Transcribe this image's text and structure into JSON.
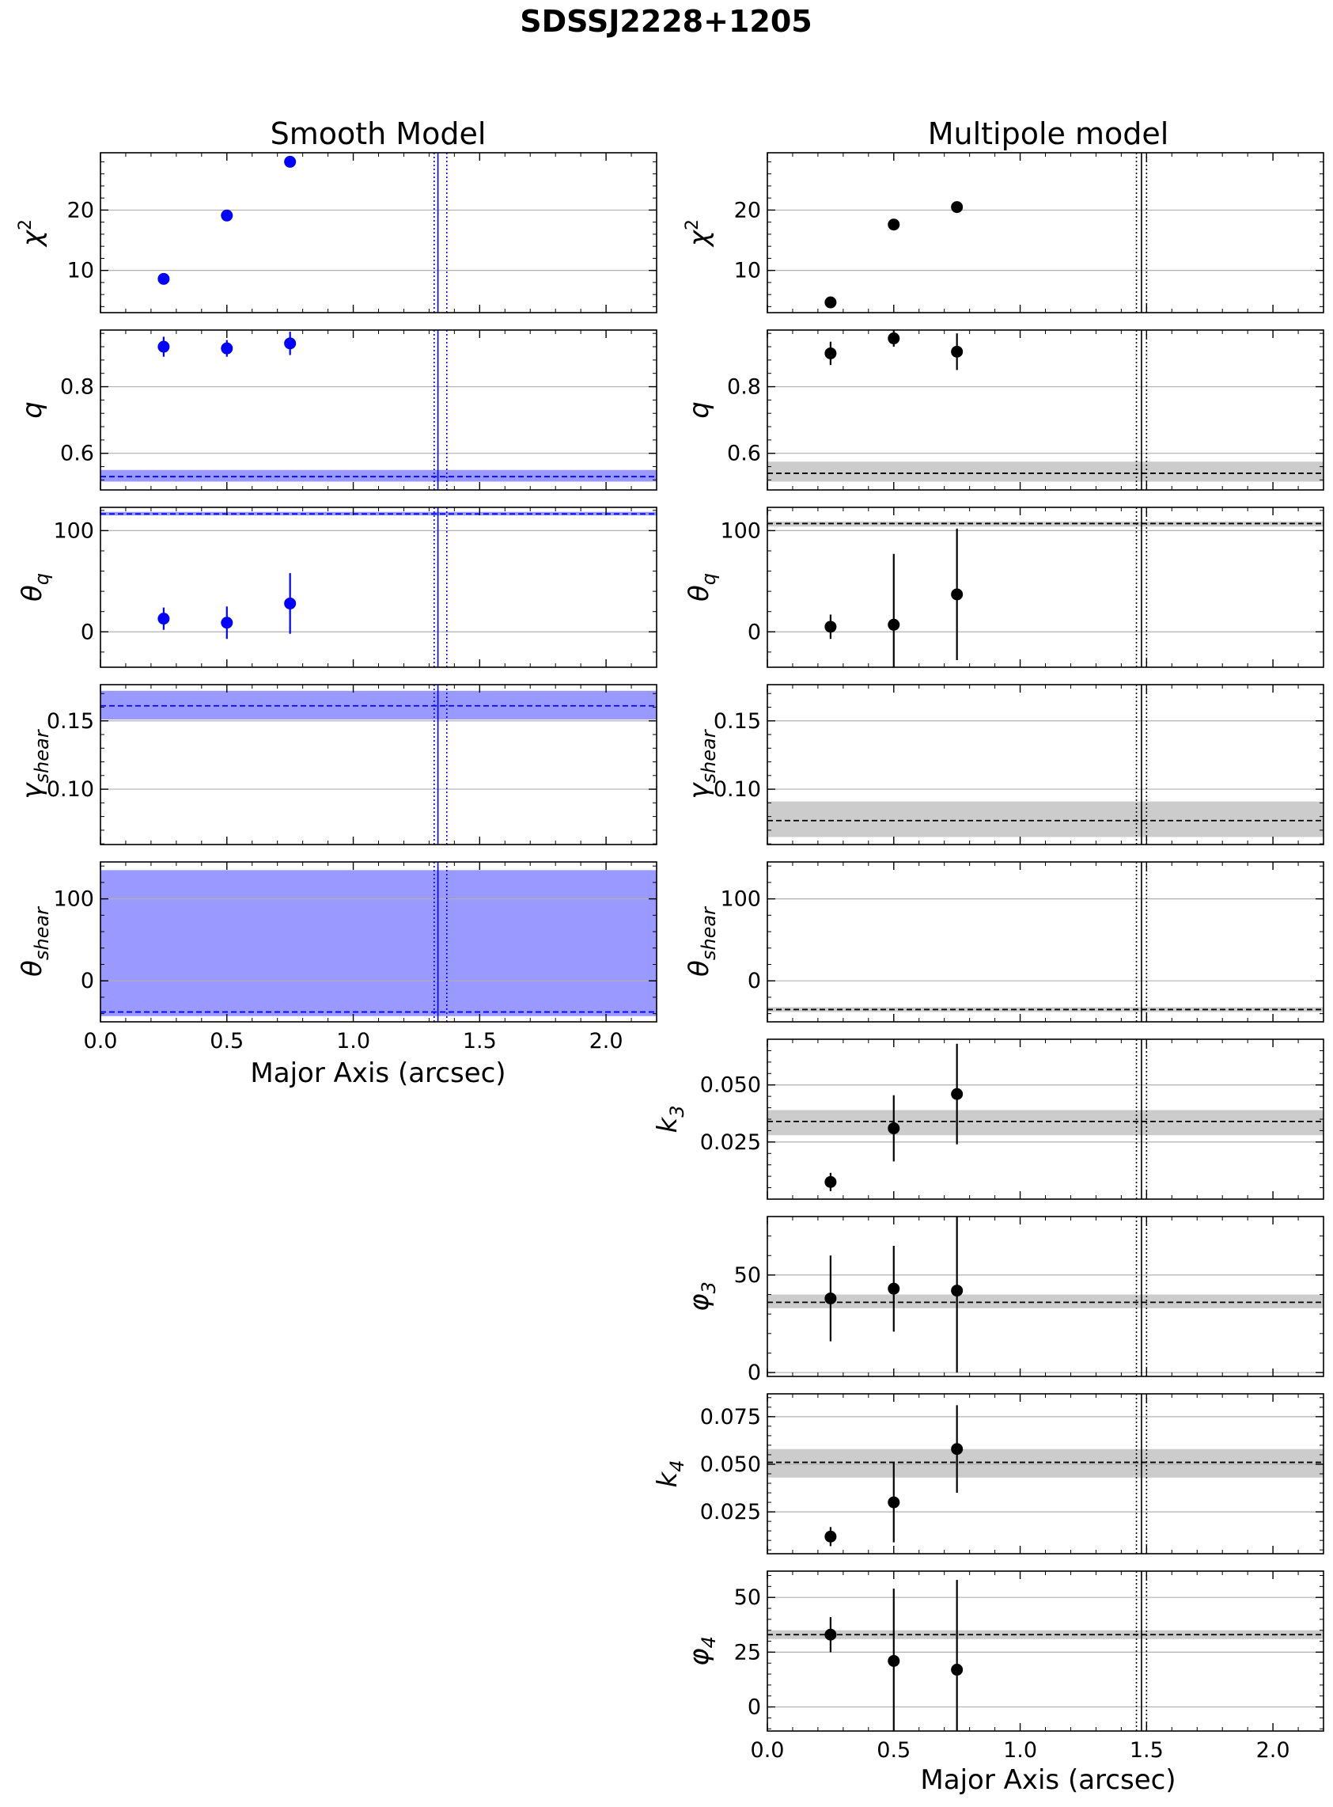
{
  "title": "SDSSJ2228+1205",
  "colors": {
    "smooth": "#0000ff",
    "smooth_band": "#9999ff",
    "multipole": "#000000",
    "multipole_band": "#cccccc",
    "grid": "#b0b0b0"
  },
  "chart_data": [
    {
      "type": "scatter",
      "column_title": "Smooth Model",
      "xlabel": "Major Axis (arcsec)",
      "xlim": [
        0.0,
        2.2
      ],
      "xticks": [
        "0.0",
        "0.5",
        "1.0",
        "1.5",
        "2.0"
      ],
      "marker_color": "#0000ff",
      "band_color": "#9999ff",
      "vlines": {
        "solid": 1.335,
        "dotted": [
          1.32,
          1.37
        ]
      },
      "panels": [
        {
          "ylabel_main": "χ",
          "ylabel_sup": "2",
          "ylabel_sub": "",
          "ylim": [
            3,
            29.5
          ],
          "yticks": [
            10,
            20
          ],
          "ytick_labels": [
            "10",
            "20"
          ],
          "x": [
            0.25,
            0.5,
            0.75
          ],
          "y": [
            8.6,
            19.1,
            28.0
          ],
          "err": [
            0,
            0,
            0
          ]
        },
        {
          "ylabel_main": "q",
          "ylabel_sup": "",
          "ylabel_sub": "",
          "ylim": [
            0.49,
            0.97
          ],
          "yticks": [
            0.6,
            0.8
          ],
          "ytick_labels": [
            "0.6",
            "0.8"
          ],
          "x": [
            0.25,
            0.5,
            0.75
          ],
          "y": [
            0.92,
            0.915,
            0.93
          ],
          "err": [
            0.03,
            0.025,
            0.035
          ],
          "hline": 0.53,
          "band": [
            0.515,
            0.55
          ]
        },
        {
          "ylabel_main": "θ",
          "ylabel_sup": "",
          "ylabel_sub": "q",
          "ylim": [
            -35,
            123
          ],
          "yticks": [
            0,
            100
          ],
          "ytick_labels": [
            "0",
            "100"
          ],
          "x": [
            0.25,
            0.5,
            0.75
          ],
          "y": [
            13,
            9,
            28
          ],
          "err": [
            11,
            16,
            30
          ],
          "hline": 116.5,
          "band": [
            115,
            118.5
          ]
        },
        {
          "ylabel_main": "γ",
          "ylabel_sup": "",
          "ylabel_sub": "shear",
          "ylim": [
            0.0595,
            0.1765
          ],
          "yticks": [
            0.1,
            0.15
          ],
          "ytick_labels": [
            "0.10",
            "0.15"
          ],
          "x": [],
          "y": [],
          "err": [],
          "hline": 0.161,
          "band": [
            0.151,
            0.172
          ]
        },
        {
          "ylabel_main": "θ",
          "ylabel_sup": "",
          "ylabel_sub": "shear",
          "ylim": [
            -50,
            145
          ],
          "yticks": [
            0,
            100
          ],
          "ytick_labels": [
            "0",
            "100"
          ],
          "x": [],
          "y": [],
          "err": [],
          "hline": -38,
          "band": [
            -43,
            135
          ]
        }
      ]
    },
    {
      "type": "scatter",
      "column_title": "Multipole model",
      "xlabel": "Major Axis (arcsec)",
      "xlim": [
        0.0,
        2.2
      ],
      "xticks": [
        "0.0",
        "0.5",
        "1.0",
        "1.5",
        "2.0"
      ],
      "marker_color": "#000000",
      "band_color": "#cccccc",
      "vlines": {
        "solid": 1.48,
        "dotted": [
          1.46,
          1.5
        ]
      },
      "panels": [
        {
          "ylabel_main": "χ",
          "ylabel_sup": "2",
          "ylabel_sub": "",
          "ylim": [
            3,
            29.5
          ],
          "yticks": [
            10,
            20
          ],
          "ytick_labels": [
            "10",
            "20"
          ],
          "x": [
            0.25,
            0.5,
            0.75
          ],
          "y": [
            4.7,
            17.6,
            20.5
          ],
          "err": [
            0,
            0,
            0
          ]
        },
        {
          "ylabel_main": "q",
          "ylabel_sup": "",
          "ylabel_sub": "",
          "ylim": [
            0.49,
            0.97
          ],
          "yticks": [
            0.6,
            0.8
          ],
          "ytick_labels": [
            "0.6",
            "0.8"
          ],
          "x": [
            0.25,
            0.5,
            0.75
          ],
          "y": [
            0.9,
            0.945,
            0.905
          ],
          "err": [
            0.035,
            0.025,
            0.055
          ],
          "hline": 0.54,
          "band": [
            0.515,
            0.575
          ]
        },
        {
          "ylabel_main": "θ",
          "ylabel_sup": "",
          "ylabel_sub": "q",
          "ylim": [
            -35,
            123
          ],
          "yticks": [
            0,
            100
          ],
          "ytick_labels": [
            "0",
            "100"
          ],
          "x": [
            0.25,
            0.5,
            0.75
          ],
          "y": [
            5,
            7,
            37
          ],
          "err": [
            12,
            70,
            65
          ],
          "hline": 107,
          "band": [
            104,
            109
          ]
        },
        {
          "ylabel_main": "γ",
          "ylabel_sup": "",
          "ylabel_sub": "shear",
          "ylim": [
            0.0595,
            0.1765
          ],
          "yticks": [
            0.1,
            0.15
          ],
          "ytick_labels": [
            "0.10",
            "0.15"
          ],
          "x": [],
          "y": [],
          "err": [],
          "hline": 0.077,
          "band": [
            0.065,
            0.091
          ]
        },
        {
          "ylabel_main": "θ",
          "ylabel_sup": "",
          "ylabel_sub": "shear",
          "ylim": [
            -50,
            145
          ],
          "yticks": [
            0,
            100
          ],
          "ytick_labels": [
            "0",
            "100"
          ],
          "x": [],
          "y": [],
          "err": [],
          "hline": -35,
          "band": [
            -38,
            -32
          ]
        },
        {
          "ylabel_main": "k",
          "ylabel_sup": "",
          "ylabel_sub": "3",
          "ylim": [
            0.0,
            0.07
          ],
          "yticks": [
            0.025,
            0.05
          ],
          "ytick_labels": [
            "0.025",
            "0.050"
          ],
          "x": [
            0.25,
            0.5,
            0.75
          ],
          "y": [
            0.0075,
            0.031,
            0.046
          ],
          "err": [
            0.004,
            0.0145,
            0.022
          ],
          "hline": 0.034,
          "band": [
            0.028,
            0.039
          ]
        },
        {
          "ylabel_main": "φ",
          "ylabel_sup": "",
          "ylabel_sub": "3",
          "ylim": [
            -2,
            80
          ],
          "yticks": [
            0,
            50
          ],
          "ytick_labels": [
            "0",
            "50"
          ],
          "x": [
            0.25,
            0.5,
            0.75
          ],
          "y": [
            38,
            43,
            42
          ],
          "err": [
            22,
            22,
            42
          ],
          "hline": 36,
          "band": [
            33,
            40
          ]
        },
        {
          "ylabel_main": "k",
          "ylabel_sup": "",
          "ylabel_sub": "4",
          "ylim": [
            0.003,
            0.087
          ],
          "yticks": [
            0.025,
            0.05,
            0.075
          ],
          "ytick_labels": [
            "0.025",
            "0.050",
            "0.075"
          ],
          "x": [
            0.25,
            0.5,
            0.75
          ],
          "y": [
            0.012,
            0.03,
            0.058
          ],
          "err": [
            0.005,
            0.021,
            0.023
          ],
          "hline": 0.051,
          "band": [
            0.043,
            0.058
          ]
        },
        {
          "ylabel_main": "φ",
          "ylabel_sup": "",
          "ylabel_sub": "4",
          "ylim": [
            -11,
            62
          ],
          "yticks": [
            0,
            25,
            50
          ],
          "ytick_labels": [
            "0",
            "25",
            "50"
          ],
          "x": [
            0.25,
            0.5,
            0.75
          ],
          "y": [
            33,
            21,
            17
          ],
          "err": [
            8,
            33,
            41
          ],
          "hline": 33,
          "band": [
            31,
            35
          ]
        }
      ]
    }
  ]
}
